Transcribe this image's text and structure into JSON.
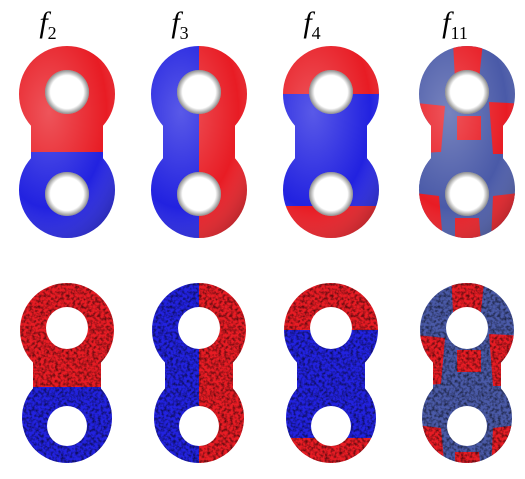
{
  "columns": [
    {
      "label_main": "f",
      "label_sub": "2"
    },
    {
      "label_main": "f",
      "label_sub": "3"
    },
    {
      "label_main": "f",
      "label_sub": "4"
    },
    {
      "label_main": "f",
      "label_sub": "11"
    }
  ],
  "colors": {
    "red": "#e81c24",
    "blue": "#2222e0",
    "slate_blue": "#4a5aa8",
    "dark_red": "#b0101a",
    "dark_blue": "#101090"
  }
}
